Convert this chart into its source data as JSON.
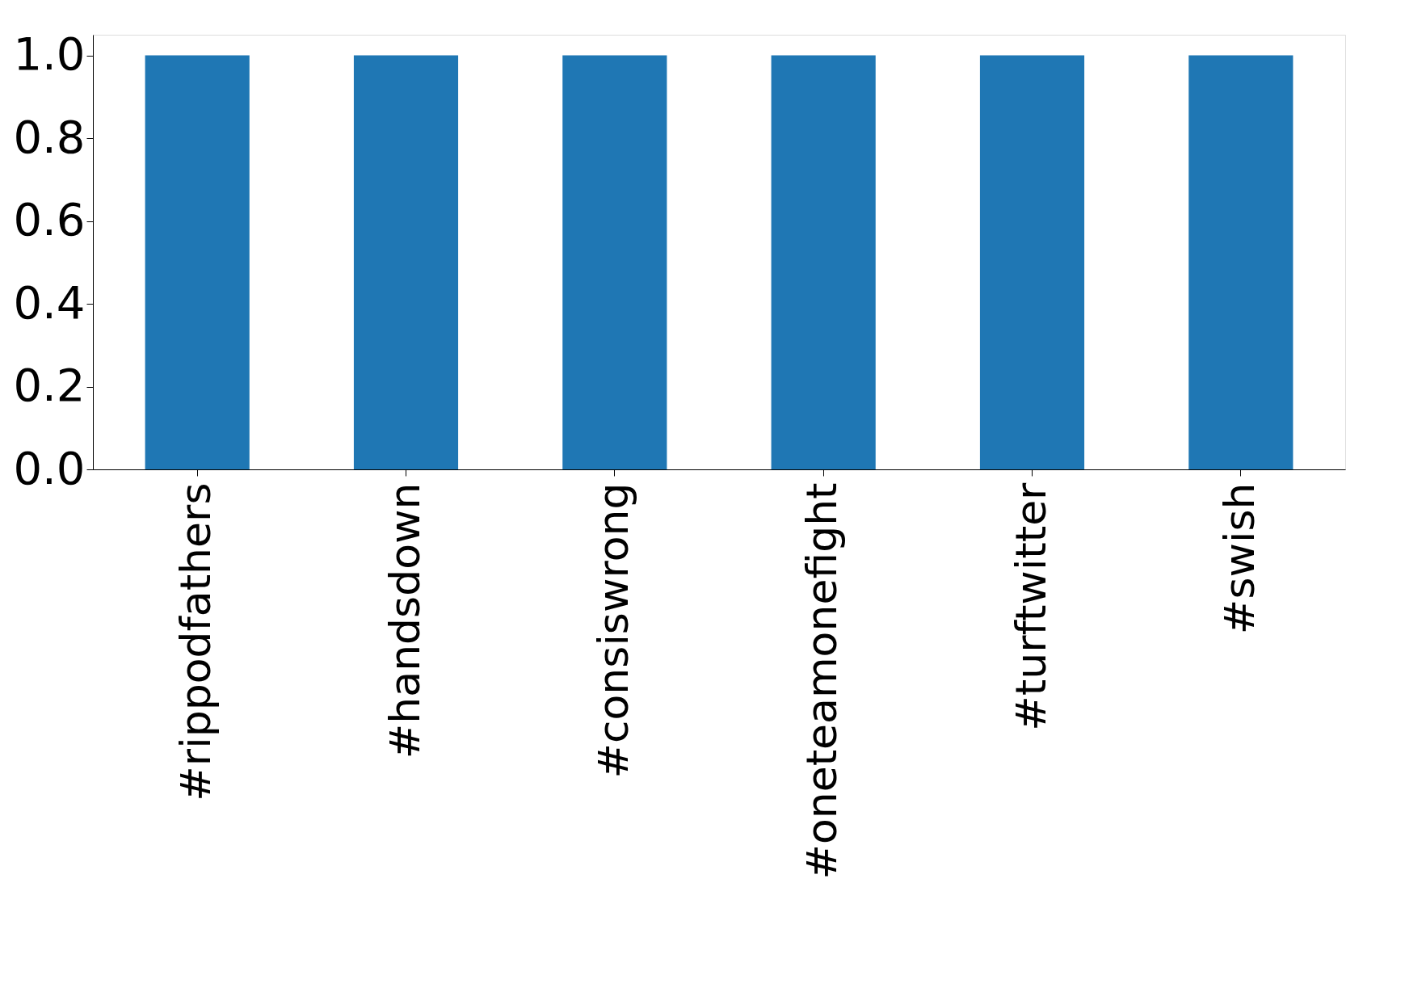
{
  "chart_data": {
    "type": "bar",
    "categories": [
      "#rippodfathers",
      "#handsdown",
      "#consiswrong",
      "#oneteamonefight",
      "#turftwitter",
      "#swish"
    ],
    "values": [
      1.0,
      1.0,
      1.0,
      1.0,
      1.0,
      1.0
    ],
    "color": "#1f77b4",
    "ylim": [
      0,
      1.05
    ],
    "yticks": [
      {
        "value": 0,
        "label": "0.0"
      },
      {
        "value": 0.2,
        "label": "0.2"
      },
      {
        "value": 0.4,
        "label": "0.4"
      },
      {
        "value": 0.6,
        "label": "0.6"
      },
      {
        "value": 0.8,
        "label": "0.8"
      },
      {
        "value": 1.0,
        "label": "1.0"
      }
    ],
    "grid": false
  }
}
